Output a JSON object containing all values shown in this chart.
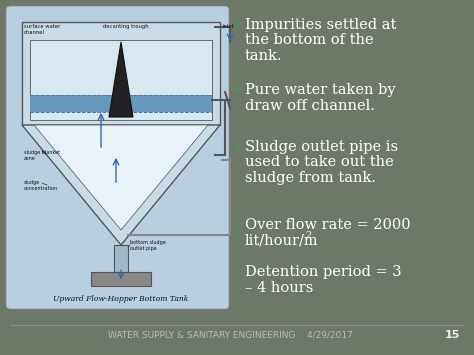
{
  "bg_color": "#787868",
  "slide_bg": "#6e7868",
  "left_panel_bg": "#b8cfe0",
  "bullet_points": [
    "Impurities settled at\nthe bottom of the\ntank.",
    "Pure water taken by\ndraw off channel.",
    "Sludge outlet pipe is\nused to take out the\nsludge from tank.",
    "Over flow rate = 2000\nlit/hour/m²",
    "Detention period = 3\n– 4 hours"
  ],
  "bullet_symbols": [
    "♦",
    "♦",
    "♦",
    "❯",
    "❯"
  ],
  "bullet_color": "#5a8a5a",
  "text_color": "#ffffff",
  "footer_text": "WATER SUPPLY & SANITARY ENGINEERING    4/29/2017",
  "footer_page": "15",
  "diagram_caption": "Upward Flow-Hopper Bottom Tank",
  "font_size_bullet": 10.5,
  "font_size_footer": 6.5
}
